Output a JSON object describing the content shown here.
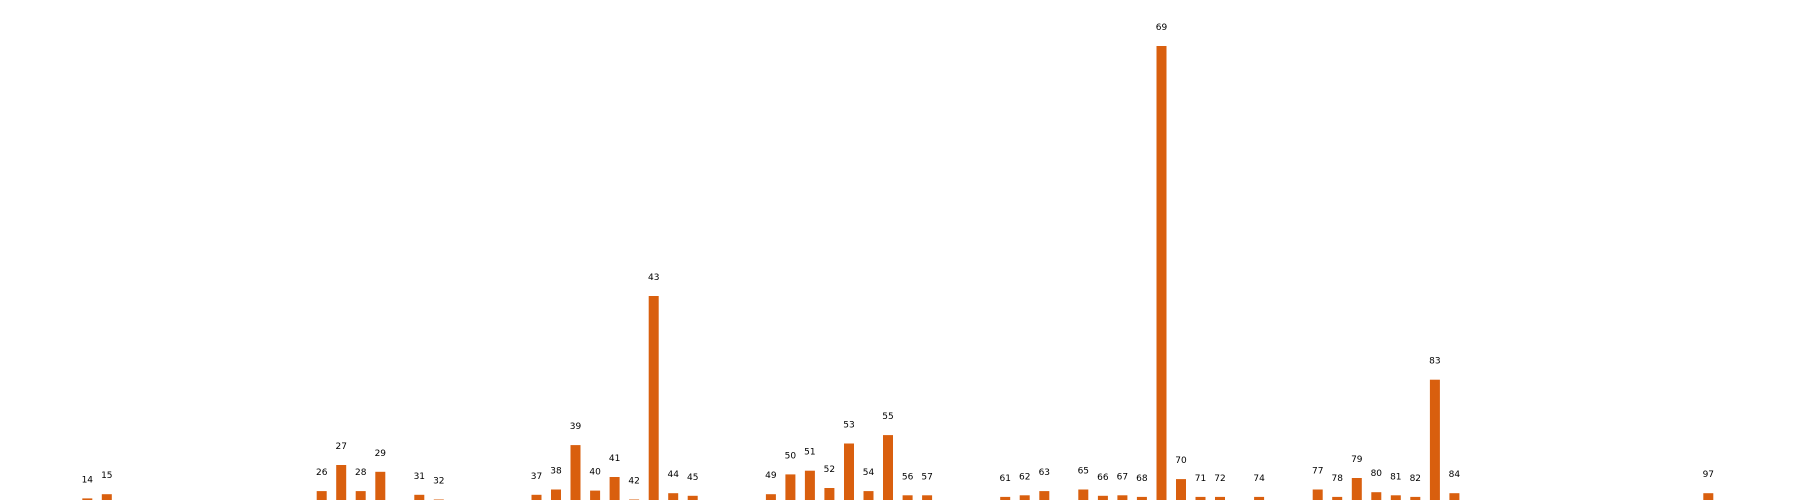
{
  "chart_data": {
    "type": "bar",
    "title": "",
    "xlabel": "",
    "ylabel": "",
    "grid": false,
    "legend": "none",
    "color": "#d95f0e",
    "categories": [
      "14",
      "15",
      "26",
      "27",
      "28",
      "29",
      "31",
      "32",
      "37",
      "38",
      "39",
      "40",
      "41",
      "42",
      "43",
      "44",
      "45",
      "49",
      "50",
      "51",
      "52",
      "53",
      "54",
      "55",
      "56",
      "57",
      "61",
      "62",
      "63",
      "65",
      "66",
      "67",
      "68",
      "69",
      "70",
      "71",
      "72",
      "74",
      "77",
      "78",
      "79",
      "80",
      "81",
      "82",
      "83",
      "84",
      "97"
    ],
    "positions": [
      14,
      15,
      26,
      27,
      28,
      29,
      31,
      32,
      37,
      38,
      39,
      40,
      41,
      42,
      43,
      44,
      45,
      49,
      50,
      51,
      52,
      53,
      54,
      55,
      56,
      57,
      61,
      62,
      63,
      65,
      66,
      67,
      68,
      69,
      70,
      71,
      72,
      74,
      77,
      78,
      79,
      80,
      81,
      82,
      83,
      84,
      97
    ],
    "values": [
      0.3,
      1.1,
      1.7,
      6.7,
      1.7,
      5.4,
      1,
      0.1,
      1,
      2,
      10.5,
      1.8,
      4.4,
      0.1,
      39,
      1.3,
      0.8,
      1.1,
      4.9,
      5.6,
      2.3,
      10.8,
      1.7,
      12.4,
      0.9,
      0.9,
      0.6,
      0.9,
      1.7,
      2,
      0.8,
      0.9,
      0.6,
      86.8,
      4,
      0.6,
      0.6,
      0.6,
      2,
      0.6,
      4.2,
      1.5,
      0.9,
      0.6,
      23,
      1.3,
      1.3
    ],
    "ylim": [
      0,
      91
    ]
  }
}
